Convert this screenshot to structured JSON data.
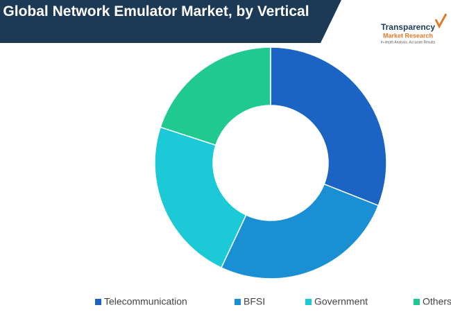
{
  "chart_data": {
    "type": "donut",
    "title": "Global Network Emulator Market, by Vertical",
    "categories": [
      "Telecommunication",
      "BFSI",
      "Government",
      "Others"
    ],
    "values": [
      31,
      26,
      23,
      20
    ],
    "colors": [
      "#1b64c3",
      "#1a8fd4",
      "#1cc9d6",
      "#20c98f"
    ],
    "legend": "bottom"
  },
  "logo": {
    "name": "Transparency",
    "name2": "Market Research",
    "tagline": "In-depth Analysis. Accurate Results"
  }
}
